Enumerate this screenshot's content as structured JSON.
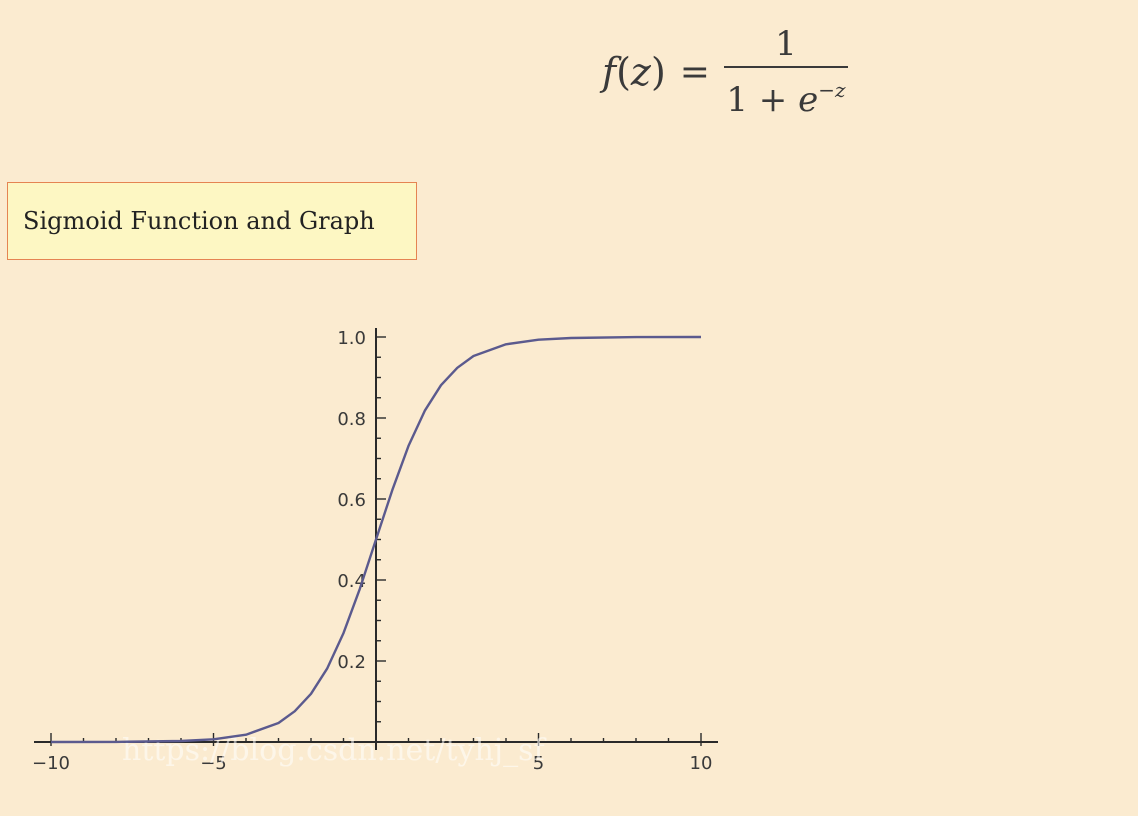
{
  "formula": {
    "lhs_f": "f",
    "lhs_open": "(",
    "lhs_var": "z",
    "lhs_close": ")",
    "equals": "=",
    "numerator": "1",
    "denominator_base": "1 + ",
    "denominator_e": "e",
    "denominator_exp": "−z"
  },
  "caption": {
    "text": "Sigmoid Function and Graph"
  },
  "watermark": {
    "text": "https://blog.csdn.net/tyhj_sf"
  },
  "chart_data": {
    "type": "line",
    "title": "",
    "xlabel": "",
    "ylabel": "",
    "xlim": [
      -10,
      10
    ],
    "ylim": [
      0,
      1
    ],
    "grid": false,
    "x_ticks": [
      -10,
      -5,
      5,
      10
    ],
    "x_tick_labels": [
      "−10",
      "−5",
      "5",
      "10"
    ],
    "y_ticks": [
      0.2,
      0.4,
      0.6,
      0.8,
      1.0
    ],
    "y_tick_labels": [
      "0.2",
      "0.4",
      "0.6",
      "0.8",
      "1.0"
    ],
    "series": [
      {
        "x": [
          -10,
          -8,
          -6,
          -5,
          -4,
          -3,
          -2.5,
          -2,
          -1.5,
          -1,
          -0.5,
          0,
          0.5,
          1,
          1.5,
          2,
          2.5,
          3,
          4,
          5,
          6,
          8,
          10
        ],
        "values": [
          5e-05,
          0.0003,
          0.0025,
          0.0067,
          0.018,
          0.047,
          0.076,
          0.119,
          0.182,
          0.269,
          0.378,
          0.5,
          0.622,
          0.731,
          0.818,
          0.881,
          0.924,
          0.953,
          0.982,
          0.9933,
          0.9975,
          0.9997,
          0.99995
        ],
        "color": "#5b5a8e"
      }
    ]
  }
}
